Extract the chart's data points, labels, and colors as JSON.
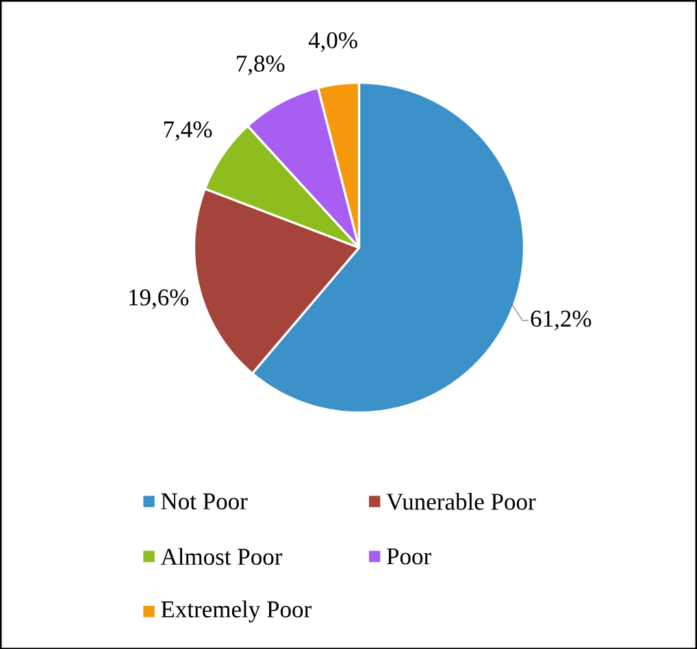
{
  "chart_data": {
    "type": "pie",
    "categories": [
      "Not Poor",
      "Vunerable Poor",
      "Almost Poor",
      "Poor",
      "Extremely Poor"
    ],
    "values": [
      61.2,
      19.6,
      7.4,
      7.8,
      4.0
    ],
    "value_labels": [
      "61,2%",
      "19,6%",
      "7,4%",
      "7,8%",
      "4,0%"
    ],
    "colors": [
      "#3b91c8",
      "#a4443a",
      "#8fbd1f",
      "#a95ef2",
      "#f7990c"
    ],
    "legend": "bottom"
  }
}
